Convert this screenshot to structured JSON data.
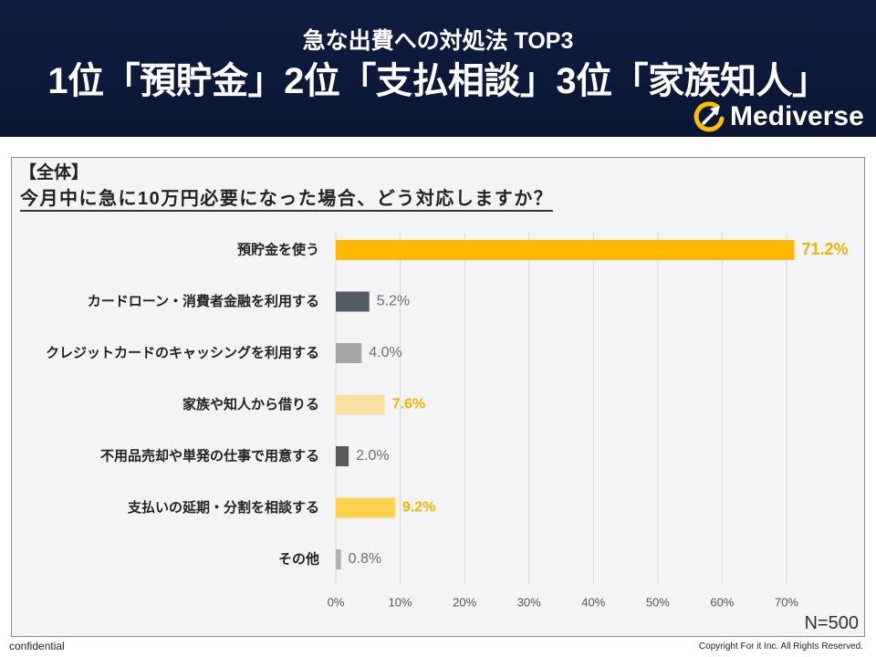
{
  "header": {
    "subtitle": "急な出費への対処法 TOP3",
    "headline": "1位「預貯金」2位「支払相談」3位「家族知人」",
    "logo_text": "Mediverse",
    "logo_icon": "mediverse-logo-icon"
  },
  "chart_data": {
    "type": "bar",
    "orientation": "horizontal",
    "group_label": "【全体】",
    "title": "今月中に急に10万円必要になった場合、どう対応しますか？",
    "categories": [
      "預貯金を使う",
      "カードローン・消費者金融を利用する",
      "クレジットカードのキャッシングを利用する",
      "家族や知人から借りる",
      "不用品売却や単発の仕事で用意する",
      "支払いの延期・分割を相談する",
      "その他"
    ],
    "values": [
      71.2,
      5.2,
      4.0,
      7.6,
      2.0,
      9.2,
      0.8
    ],
    "data_labels": [
      "71.2%",
      "5.2%",
      "4.0%",
      "7.6%",
      "2.0%",
      "9.2%",
      "0.8%"
    ],
    "xlim": [
      0,
      70
    ],
    "x_ticks": [
      0,
      10,
      20,
      30,
      40,
      50,
      60,
      70
    ],
    "tick_labels": [
      "0%",
      "10%",
      "20%",
      "30%",
      "40%",
      "50%",
      "60%",
      "70%"
    ],
    "grid": true,
    "bar_colors": [
      "#ffb800",
      "#535b67",
      "#a6a6a6",
      "#f9dfa1",
      "#595959",
      "#ffd24e",
      "#b0b0b0"
    ],
    "data_label_colors": [
      "#f5b300",
      "#6f6f6f",
      "#6f6f6f",
      "#f5b300",
      "#6f6f6f",
      "#f5b300",
      "#6f6f6f"
    ],
    "emphasized": [
      true,
      false,
      false,
      true,
      false,
      true,
      false
    ],
    "note": "N=500"
  },
  "footer": {
    "left": "confidential",
    "right": "Copyright For it Inc. All Rights Reserved."
  },
  "colors": {
    "header_background": "#0d1a3a",
    "panel_background": "#f4f4f6",
    "grid": "#d9d9d9",
    "accent": "#ffb800",
    "logo_accent": "#f7c300"
  }
}
